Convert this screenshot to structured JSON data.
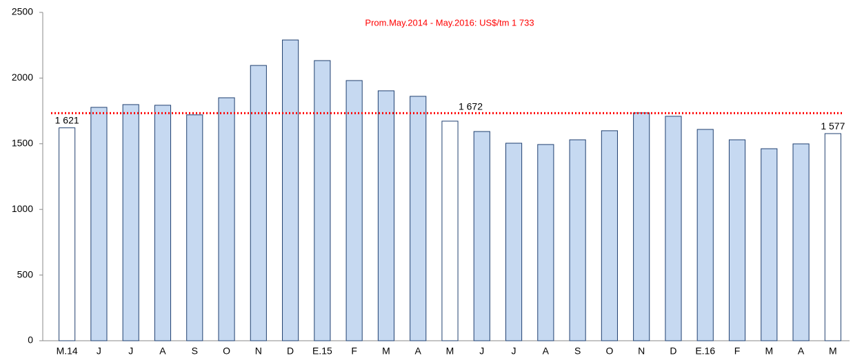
{
  "chart_data": {
    "type": "bar",
    "annotation": "Prom.May.2014 - May.2016: US$/tm 1 733",
    "reference_line": {
      "value": 1733,
      "color": "#ff0000"
    },
    "categories": [
      "M.14",
      "J",
      "J",
      "A",
      "S",
      "O",
      "N",
      "D",
      "E.15",
      "F",
      "M",
      "A",
      "M",
      "J",
      "J",
      "A",
      "S",
      "O",
      "N",
      "D",
      "E.16",
      "F",
      "M",
      "A",
      "M"
    ],
    "values": [
      1621,
      1777,
      1798,
      1793,
      1720,
      1850,
      2096,
      2290,
      2133,
      1981,
      1903,
      1861,
      1672,
      1593,
      1504,
      1494,
      1530,
      1599,
      1735,
      1709,
      1609,
      1530,
      1462,
      1499,
      1577
    ],
    "value_labels": [
      "1 621",
      null,
      null,
      null,
      null,
      null,
      null,
      null,
      null,
      null,
      null,
      null,
      "1 672",
      null,
      null,
      null,
      null,
      null,
      null,
      null,
      null,
      null,
      null,
      null,
      "1 577"
    ],
    "colors": [
      "#ffffff",
      "#c6d9f1",
      "#c6d9f1",
      "#c6d9f1",
      "#c6d9f1",
      "#c6d9f1",
      "#c6d9f1",
      "#c6d9f1",
      "#c6d9f1",
      "#c6d9f1",
      "#c6d9f1",
      "#c6d9f1",
      "#ffffff",
      "#c6d9f1",
      "#c6d9f1",
      "#c6d9f1",
      "#c6d9f1",
      "#c6d9f1",
      "#c6d9f1",
      "#c6d9f1",
      "#c6d9f1",
      "#c6d9f1",
      "#c6d9f1",
      "#c6d9f1",
      "#ffffff"
    ],
    "bar_edge_color": "#1f3f6f",
    "ylim": [
      0,
      2500
    ],
    "yticks": [
      0,
      500,
      1000,
      1500,
      2000,
      2500
    ],
    "grid": false
  }
}
